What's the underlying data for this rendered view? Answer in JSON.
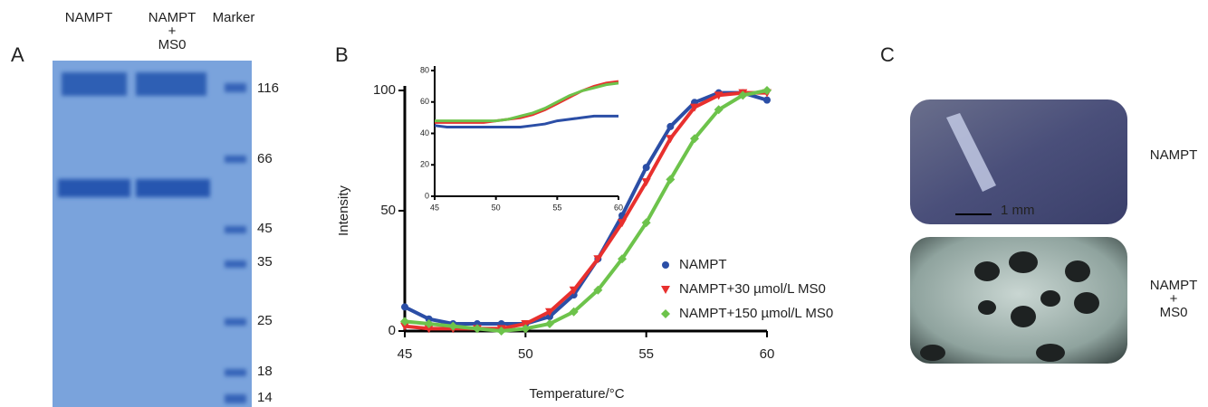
{
  "panel_a": {
    "letter": "A",
    "lanes": [
      "NAMPT",
      [
        "NAMPT",
        "+",
        "MS0"
      ],
      "Marker"
    ],
    "marker_sizes": [
      "116",
      "66",
      "45",
      "35",
      "25",
      "18",
      "14"
    ]
  },
  "chart_data": [
    {
      "type": "line",
      "letter": "B",
      "xlabel": "Temperature/°C",
      "ylabel": "Intensity",
      "x": [
        45,
        46,
        47,
        48,
        49,
        50,
        51,
        52,
        53,
        54,
        55,
        56,
        57,
        58,
        59,
        60
      ],
      "series": [
        {
          "name": "NAMPT",
          "color": "#2b4ea6",
          "marker": "circle",
          "values": [
            10,
            5,
            3,
            3,
            3,
            3,
            6,
            15,
            30,
            48,
            68,
            85,
            95,
            99,
            99,
            96
          ]
        },
        {
          "name": "NAMPT+30 µmol/L MS0",
          "color": "#e8302e",
          "marker": "triangle",
          "values": [
            2,
            1,
            1,
            1,
            1,
            3,
            8,
            17,
            30,
            45,
            62,
            80,
            93,
            98,
            99,
            99
          ]
        },
        {
          "name": "NAMPT+150 µmol/L MS0",
          "color": "#6dc34b",
          "marker": "diamond",
          "values": [
            4,
            3,
            2,
            1,
            0,
            1,
            3,
            8,
            17,
            30,
            45,
            63,
            80,
            92,
            98,
            100
          ]
        }
      ],
      "xlim": [
        45,
        60
      ],
      "ylim": [
        0,
        100
      ],
      "xticks": [
        45,
        50,
        55,
        60
      ],
      "yticks": [
        0,
        50,
        100
      ],
      "legend": "lower right"
    },
    {
      "type": "line",
      "x": [
        45,
        46,
        47,
        48,
        49,
        50,
        51,
        52,
        53,
        54,
        55,
        56,
        57,
        58,
        59,
        60
      ],
      "series": [
        {
          "color": "#2b4ea6",
          "values": [
            45,
            44,
            44,
            44,
            44,
            44,
            44,
            44,
            45,
            46,
            48,
            49,
            50,
            51,
            51,
            51
          ]
        },
        {
          "color": "#e8302e",
          "values": [
            47,
            47,
            47,
            47,
            47,
            48,
            49,
            50,
            52,
            55,
            59,
            63,
            67,
            70,
            72,
            73
          ]
        },
        {
          "color": "#6dc34b",
          "values": [
            48,
            48,
            48,
            48,
            48,
            48,
            49,
            51,
            53,
            56,
            60,
            64,
            67,
            69,
            71,
            72
          ]
        }
      ],
      "xlim": [
        45,
        60
      ],
      "ylim": [
        0,
        80
      ],
      "xticks": [
        45,
        50,
        55,
        60
      ],
      "yticks": [
        0,
        20,
        40,
        60,
        80
      ]
    }
  ],
  "panel_c": {
    "letter": "C",
    "scale_bar": "1 mm",
    "labels": [
      [
        "NAMPT"
      ],
      [
        "NAMPT",
        "+",
        "MS0"
      ]
    ]
  }
}
